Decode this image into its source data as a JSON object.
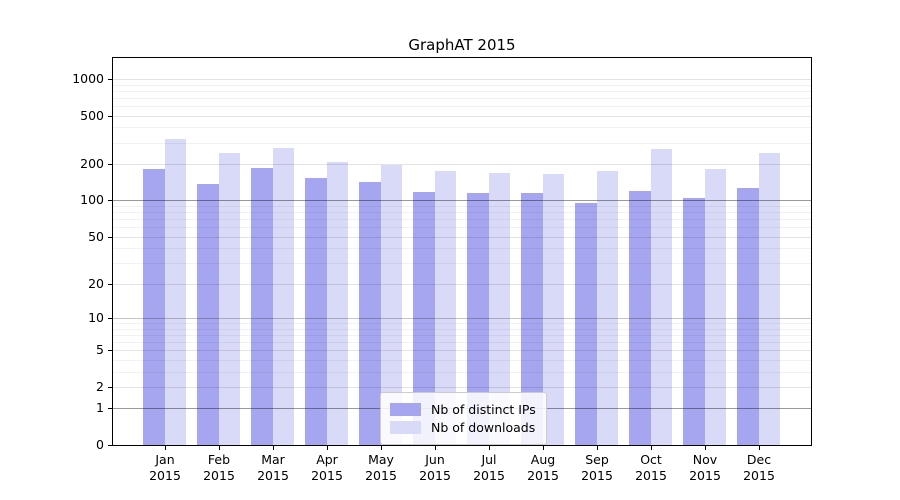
{
  "title": "GraphAT 2015",
  "chart_data": {
    "type": "bar",
    "title": "GraphAT 2015",
    "xlabel": "",
    "ylabel": "",
    "year": "2015",
    "categories": [
      "Jan",
      "Feb",
      "Mar",
      "Apr",
      "May",
      "Jun",
      "Jul",
      "Aug",
      "Sep",
      "Oct",
      "Nov",
      "Dec"
    ],
    "series": [
      {
        "name": "Nb of distinct IPs",
        "color": "#a5a5f0",
        "values": [
          183,
          137,
          186,
          154,
          141,
          118,
          116,
          115,
          96,
          120,
          104,
          128
        ]
      },
      {
        "name": "Nb of downloads",
        "color": "#d9d9f8",
        "values": [
          323,
          246,
          272,
          209,
          196,
          175,
          168,
          165,
          175,
          266,
          182,
          247
        ]
      }
    ],
    "y_ticks": [
      1000,
      500,
      200,
      100,
      50,
      20,
      10,
      5,
      2,
      1,
      0
    ],
    "scale": "log10(1+v)",
    "ylim": [
      0,
      1490
    ],
    "grid": "on",
    "legend_position": "lower center"
  }
}
